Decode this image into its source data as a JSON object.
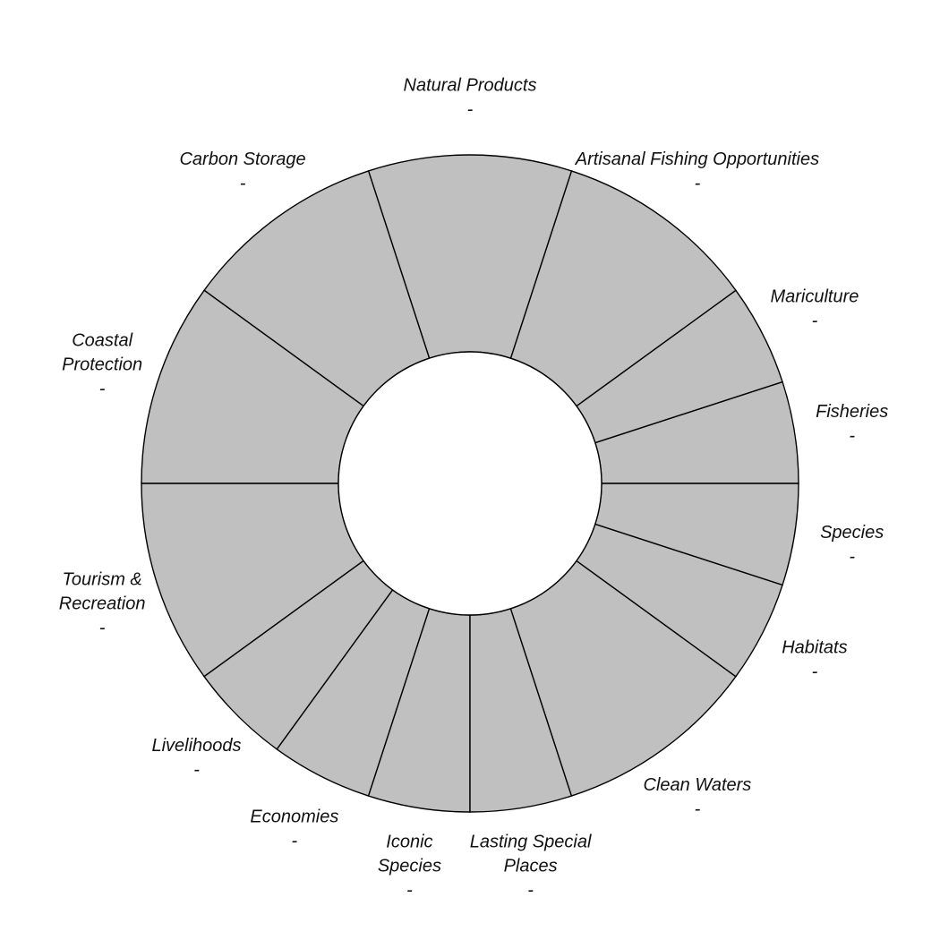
{
  "chart_data": {
    "type": "pie",
    "subtype": "donut",
    "segment_color": "#c0c0c0",
    "stroke_color": "#000000",
    "hole_color": "#ffffff",
    "segments": [
      {
        "key": "fisheries",
        "label_lines": [
          "Fisheries"
        ],
        "value_text": "-",
        "weight": 0.5
      },
      {
        "key": "mariculture",
        "label_lines": [
          "Mariculture"
        ],
        "value_text": "-",
        "weight": 0.5
      },
      {
        "key": "artisanal",
        "label_lines": [
          "Artisanal Fishing Opportunities"
        ],
        "value_text": "-",
        "weight": 1
      },
      {
        "key": "natural-products",
        "label_lines": [
          "Natural Products"
        ],
        "value_text": "-",
        "weight": 1
      },
      {
        "key": "carbon-storage",
        "label_lines": [
          "Carbon Storage"
        ],
        "value_text": "-",
        "weight": 1
      },
      {
        "key": "coastal-protection",
        "label_lines": [
          "Coastal",
          "Protection"
        ],
        "value_text": "-",
        "weight": 1
      },
      {
        "key": "tourism",
        "label_lines": [
          "Tourism &",
          "Recreation"
        ],
        "value_text": "-",
        "weight": 1
      },
      {
        "key": "livelihoods",
        "label_lines": [
          "Livelihoods"
        ],
        "value_text": "-",
        "weight": 0.5
      },
      {
        "key": "economies",
        "label_lines": [
          "Economies"
        ],
        "value_text": "-",
        "weight": 0.5
      },
      {
        "key": "iconic-species",
        "label_lines": [
          "Iconic",
          "Species"
        ],
        "value_text": "-",
        "weight": 0.5
      },
      {
        "key": "lasting-special-places",
        "label_lines": [
          "Lasting Special",
          "Places"
        ],
        "value_text": "-",
        "weight": 0.5
      },
      {
        "key": "clean-waters",
        "label_lines": [
          "Clean Waters"
        ],
        "value_text": "-",
        "weight": 1
      },
      {
        "key": "habitats",
        "label_lines": [
          "Habitats"
        ],
        "value_text": "-",
        "weight": 0.5
      },
      {
        "key": "species",
        "label_lines": [
          "Species"
        ],
        "value_text": "-",
        "weight": 0.5
      }
    ]
  }
}
